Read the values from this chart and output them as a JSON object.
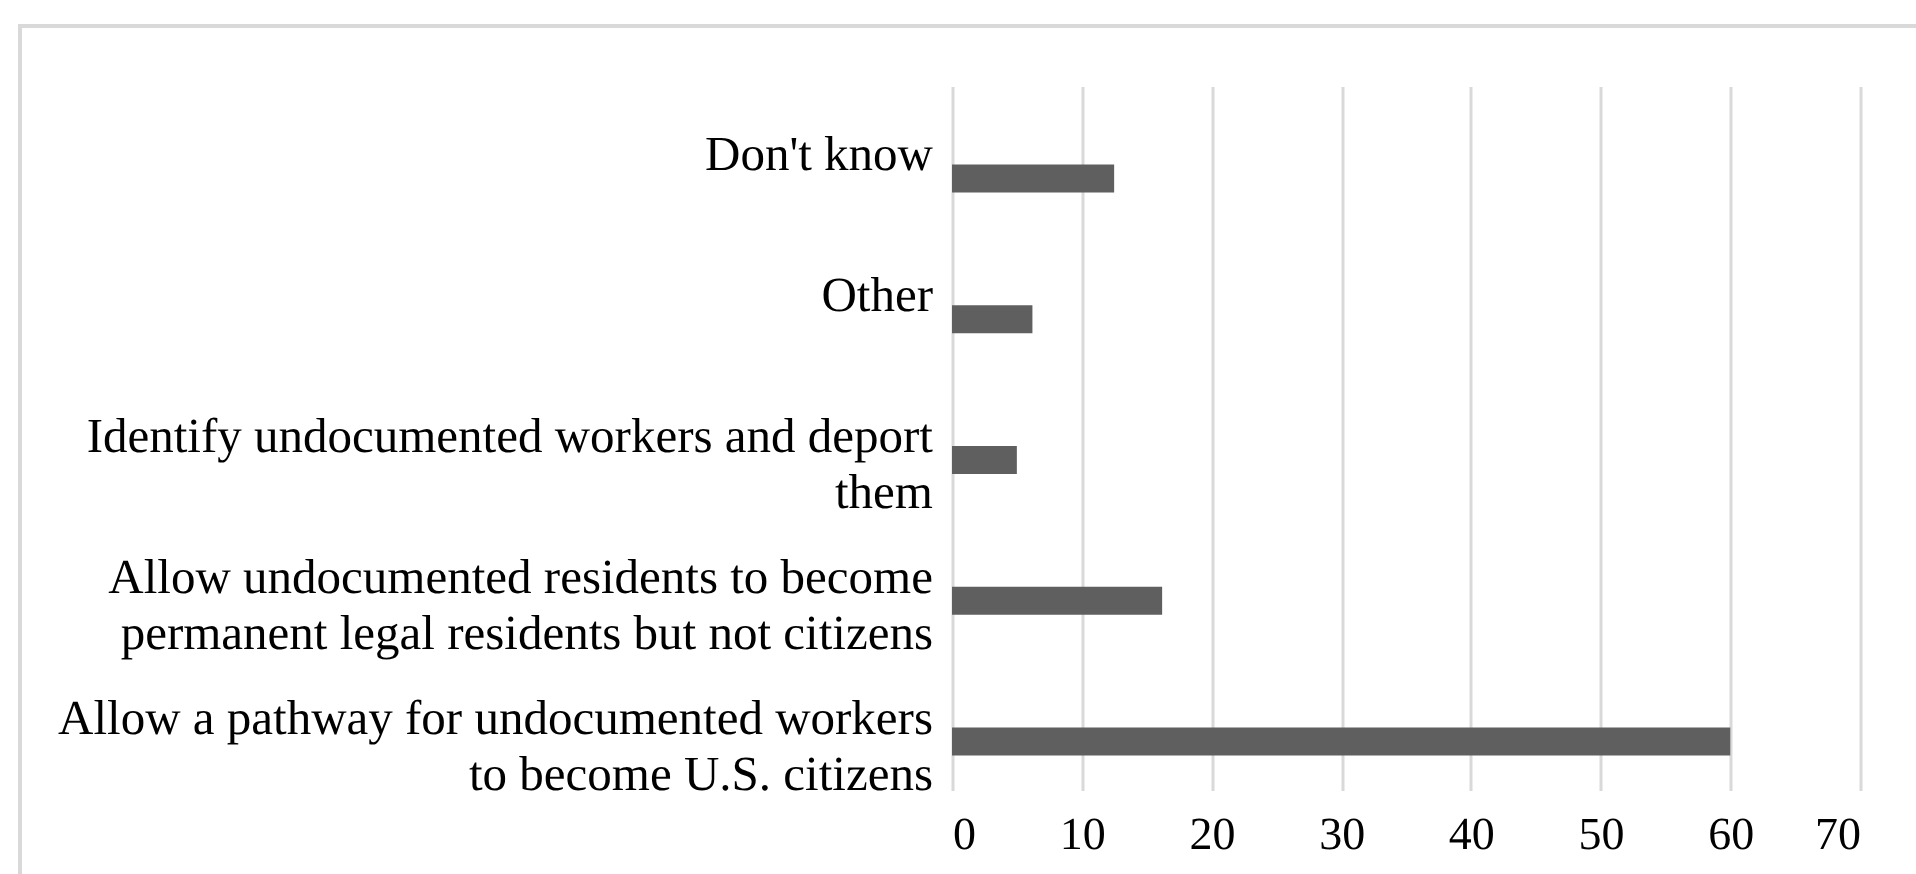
{
  "chart_data": {
    "type": "bar",
    "orientation": "horizontal",
    "categories": [
      "Don't know",
      "Other",
      "Identify undocumented workers and deport them",
      "Allow undocumented residents to become permanent legal residents but not citizens",
      "Allow a pathway for undocumented workers to become U.S. citizens"
    ],
    "values": [
      12.5,
      6.2,
      5,
      16.2,
      60
    ],
    "color": "#5f5f5f",
    "xlim": [
      0,
      70
    ],
    "xticks": [
      0,
      10,
      20,
      30,
      40,
      50,
      60,
      70
    ],
    "grid": "x"
  }
}
